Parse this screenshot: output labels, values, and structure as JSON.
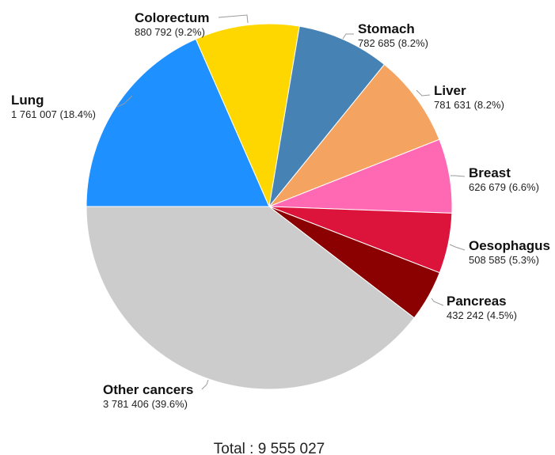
{
  "chart_data": {
    "type": "pie",
    "start": "left, counter-clockwise from left going clockwise",
    "slices": [
      {
        "name": "Lung",
        "value": 1761007,
        "label": "1 761 007 (18.4%)",
        "color": "#1E90FF"
      },
      {
        "name": "Colorectum",
        "value": 880792,
        "label": "880 792 (9.2%)",
        "color": "#FFD700"
      },
      {
        "name": "Stomach",
        "value": 782685,
        "label": "782 685 (8.2%)",
        "color": "#4682B4"
      },
      {
        "name": "Liver",
        "value": 781631,
        "label": "781 631 (8.2%)",
        "color": "#F4A460"
      },
      {
        "name": "Breast",
        "value": 626679,
        "label": "626 679 (6.6%)",
        "color": "#FF69B4"
      },
      {
        "name": "Oesophagus",
        "value": 508585,
        "label": "508 585 (5.3%)",
        "color": "#DC143C"
      },
      {
        "name": "Pancreas",
        "value": 432242,
        "label": "432 242 (4.5%)",
        "color": "#8B0000"
      },
      {
        "name": "Other cancers",
        "value": 3781406,
        "label": "3 781 406 (39.6%)",
        "color": "#CCCCCC"
      }
    ],
    "total": 9555027,
    "total_label": "Total : 9 555 027",
    "legend": "none",
    "labels": "outside with leader lines"
  }
}
